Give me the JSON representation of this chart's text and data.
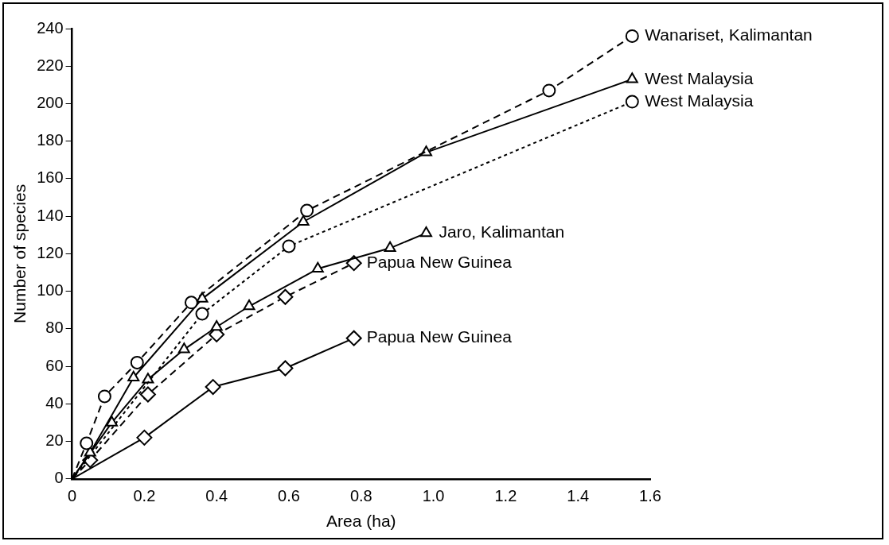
{
  "chart_data": {
    "type": "line",
    "xlabel": "Area (ha)",
    "ylabel": "Number of species",
    "xlim": [
      0,
      1.6
    ],
    "xticks": [
      0,
      0.2,
      0.4,
      0.6,
      0.8,
      {
        "value": 1,
        "label": "1.0"
      },
      1.2,
      1.4,
      1.6
    ],
    "ylim": [
      0,
      240
    ],
    "yticks": [
      0,
      20,
      40,
      60,
      80,
      100,
      120,
      140,
      160,
      180,
      200,
      220,
      240
    ],
    "grid": false,
    "legend": false,
    "series": [
      {
        "name": "Wanariset, Kalimantan",
        "color": "#000000",
        "marker": "circle",
        "line_style": "dashed",
        "x": [
          0,
          0.04,
          0.09,
          0.18,
          0.33,
          0.65,
          1.32,
          1.55
        ],
        "values": [
          0,
          19,
          44,
          62,
          94,
          143,
          207,
          236
        ]
      },
      {
        "name": "West Malaysia",
        "color": "#000000",
        "marker": "triangle",
        "line_style": "solid",
        "x": [
          0,
          0.05,
          0.17,
          0.36,
          0.64,
          0.98,
          1.55
        ],
        "values": [
          0,
          14,
          54,
          96,
          137,
          174,
          213
        ]
      },
      {
        "name": "West Malaysia",
        "color": "#000000",
        "marker": "circle",
        "line_style": "dotted",
        "x": [
          0,
          0.04,
          0.36,
          0.6,
          1.55
        ],
        "values": [
          0,
          null,
          88,
          124,
          201
        ]
      },
      {
        "name": "Jaro, Kalimantan",
        "color": "#000000",
        "marker": "triangle",
        "line_style": "solid",
        "x": [
          0,
          0.11,
          0.21,
          0.31,
          0.4,
          0.49,
          0.68,
          0.88,
          0.98
        ],
        "values": [
          0,
          30,
          53,
          69,
          81,
          92,
          112,
          123,
          131
        ]
      },
      {
        "name": "Papua New Guinea",
        "color": "#000000",
        "marker": "diamond",
        "line_style": "dashed",
        "x": [
          0,
          0.05,
          0.21,
          0.4,
          0.59,
          0.78
        ],
        "values": [
          0,
          10,
          45,
          77,
          97,
          115
        ]
      },
      {
        "name": "Papua New Guinea",
        "color": "#000000",
        "marker": "diamond",
        "line_style": "solid",
        "x": [
          0,
          0.2,
          0.39,
          0.59,
          0.78
        ],
        "values": [
          0,
          22,
          49,
          59,
          75
        ]
      }
    ]
  }
}
